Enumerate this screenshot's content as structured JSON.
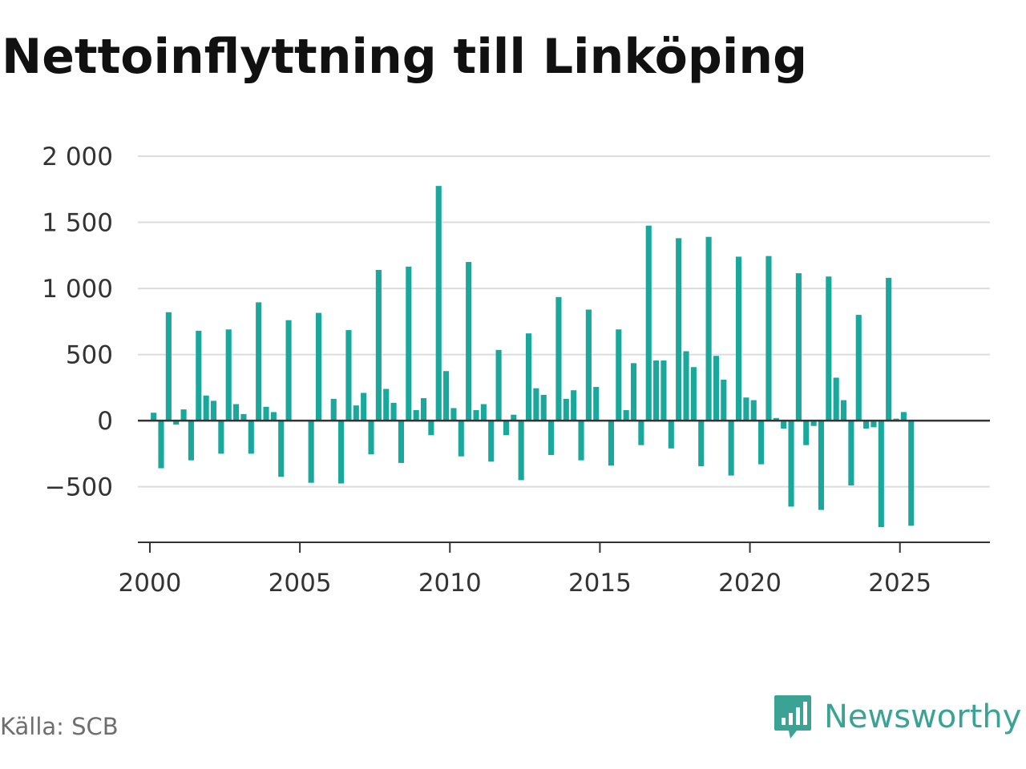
{
  "header": {
    "title": "Nettoinflyttning till Linköping"
  },
  "footer": {
    "source": "Källa: SCB"
  },
  "logo": {
    "text": "Newsworthy",
    "icon": "bar-chart-speech-bubble-icon",
    "color": "#3aa394"
  },
  "chart_data": {
    "type": "bar",
    "title": "Nettoinflyttning till Linköping",
    "xlabel": "",
    "ylabel": "",
    "bar_color": "#1aa89c",
    "grid": true,
    "ylim": [
      -920,
      2000
    ],
    "y_ticks": [
      2000,
      1500,
      1000,
      500,
      0,
      -500
    ],
    "y_tick_labels": [
      "2 000",
      "1 500",
      "1 000",
      "500",
      "0",
      "−500"
    ],
    "x_range": [
      1999.6,
      2028.0
    ],
    "x_ticks": [
      2000,
      2005,
      2010,
      2015,
      2020,
      2025
    ],
    "x_tick_labels": [
      "2000",
      "2005",
      "2010",
      "2015",
      "2020",
      "2025"
    ],
    "granularity": "quarter",
    "start": "2000 Q1",
    "values": [
      60,
      -360,
      820,
      -30,
      85,
      -300,
      680,
      190,
      150,
      -250,
      690,
      125,
      50,
      -250,
      895,
      105,
      65,
      -425,
      760,
      0,
      0,
      -470,
      815,
      0,
      165,
      -475,
      685,
      115,
      210,
      -255,
      1140,
      240,
      135,
      -320,
      1165,
      80,
      170,
      -110,
      1775,
      375,
      95,
      -270,
      1200,
      80,
      125,
      -310,
      535,
      -110,
      45,
      -450,
      660,
      245,
      195,
      -260,
      935,
      165,
      230,
      -300,
      840,
      255,
      0,
      -340,
      690,
      80,
      435,
      -185,
      1475,
      455,
      455,
      -210,
      1380,
      525,
      405,
      -345,
      1390,
      490,
      310,
      -415,
      1240,
      175,
      155,
      -330,
      1245,
      20,
      -60,
      -650,
      1115,
      -185,
      -40,
      -675,
      1090,
      325,
      155,
      -490,
      800,
      -60,
      -50,
      -805,
      1080,
      15,
      65,
      -795
    ]
  }
}
